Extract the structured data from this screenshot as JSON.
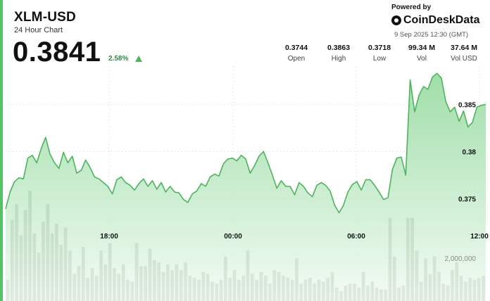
{
  "header": {
    "title": "XLM-USD",
    "subtitle": "24 Hour Chart",
    "price": "0.3841",
    "change": "2.58%"
  },
  "branding": {
    "powered_by": "Powered by",
    "brand": "CoinDeskData",
    "timestamp": "9 Sep 2025 12:30 (GMT)"
  },
  "stats": [
    {
      "value": "0.3744",
      "label": "Open"
    },
    {
      "value": "0.3863",
      "label": "High"
    },
    {
      "value": "0.3718",
      "label": "Low"
    },
    {
      "value": "99.34 M",
      "label": "Vol"
    },
    {
      "value": "37.64 M",
      "label": "Vol USD"
    }
  ],
  "colors": {
    "accent": "#56c168",
    "line": "#4fb35f",
    "area_top": "#8fd89a",
    "area_bottom": "#eef9ef",
    "volume_bar": "#6e7d6e",
    "up": "#4fb35f"
  },
  "icons": {
    "change": "up-triangle-icon",
    "brand": "coindesk-logo-icon"
  },
  "chart_data": {
    "type": "area",
    "x_tick_labels": [
      "18:00",
      "00:00",
      "06:00",
      "12:00"
    ],
    "y_tick_labels": [
      "0.375",
      "0.38",
      "0.385"
    ],
    "volume_tick_label": "2,000,000",
    "ylim": [
      0.3707,
      0.3916
    ],
    "grid": true,
    "price": [
      0.3739,
      0.3757,
      0.3768,
      0.3772,
      0.3771,
      0.3793,
      0.3796,
      0.3788,
      0.3803,
      0.3815,
      0.3797,
      0.3788,
      0.3782,
      0.3799,
      0.3788,
      0.3795,
      0.3777,
      0.378,
      0.3791,
      0.3783,
      0.3773,
      0.3771,
      0.3767,
      0.3763,
      0.3755,
      0.377,
      0.3773,
      0.3767,
      0.3764,
      0.3759,
      0.3766,
      0.3771,
      0.3763,
      0.3769,
      0.376,
      0.3767,
      0.3757,
      0.3763,
      0.3757,
      0.3756,
      0.3749,
      0.3746,
      0.3755,
      0.3758,
      0.3766,
      0.3763,
      0.3773,
      0.3776,
      0.3774,
      0.3787,
      0.3792,
      0.3793,
      0.379,
      0.3796,
      0.3792,
      0.3777,
      0.3785,
      0.3795,
      0.38,
      0.3788,
      0.3775,
      0.3761,
      0.3769,
      0.3763,
      0.3763,
      0.3754,
      0.3767,
      0.3763,
      0.3756,
      0.3752,
      0.3764,
      0.3767,
      0.3764,
      0.3758,
      0.3743,
      0.3735,
      0.3743,
      0.3757,
      0.3765,
      0.3768,
      0.3759,
      0.377,
      0.377,
      0.3764,
      0.3757,
      0.3749,
      0.3751,
      0.3781,
      0.3793,
      0.3794,
      0.3775,
      0.3876,
      0.3842,
      0.386,
      0.3869,
      0.3866,
      0.3879,
      0.3883,
      0.3878,
      0.3853,
      0.3842,
      0.3847,
      0.3832,
      0.3843,
      0.3826,
      0.3831,
      0.3847,
      0.3849,
      0.385
    ],
    "volume_millions": [
      1.1,
      4.2,
      5.0,
      3.4,
      4.7,
      5.7,
      3.5,
      2.5,
      4.1,
      5.0,
      3.5,
      4.0,
      2.9,
      3.8,
      2.6,
      1.4,
      1.8,
      2.8,
      1.2,
      1.7,
      1.3,
      2.6,
      1.9,
      3.0,
      1.7,
      1.4,
      1.9,
      1.1,
      1.0,
      3.0,
      1.8,
      1.8,
      2.7,
      2.1,
      2.0,
      1.5,
      1.9,
      1.6,
      1.9,
      1.6,
      2.0,
      1.3,
      1.2,
      1.1,
      1.5,
      1.4,
      1.0,
      0.9,
      1.1,
      2.3,
      1.2,
      1.6,
      1.1,
      1.3,
      2.6,
      1.4,
      1.1,
      1.5,
      1.3,
      0.9,
      1.6,
      1.5,
      1.3,
      1.2,
      1.1,
      2.2,
      0.9,
      1.1,
      1.2,
      0.9,
      1.1,
      1.0,
      1.2,
      1.5,
      0.7,
      0.5,
      0.8,
      0.9,
      0.9,
      0.7,
      1.5,
      0.8,
      1.0,
      0.7,
      0.6,
      0.6,
      4.3,
      2.3,
      0.7,
      0.8,
      4.3,
      4.3,
      2.6,
      1.0,
      2.2,
      1.4,
      2.3,
      1.5,
      0.9,
      0.8,
      1.6,
      2.0,
      1.3,
      1.0,
      1.2,
      1.1,
      1.2,
      1.3
    ]
  }
}
